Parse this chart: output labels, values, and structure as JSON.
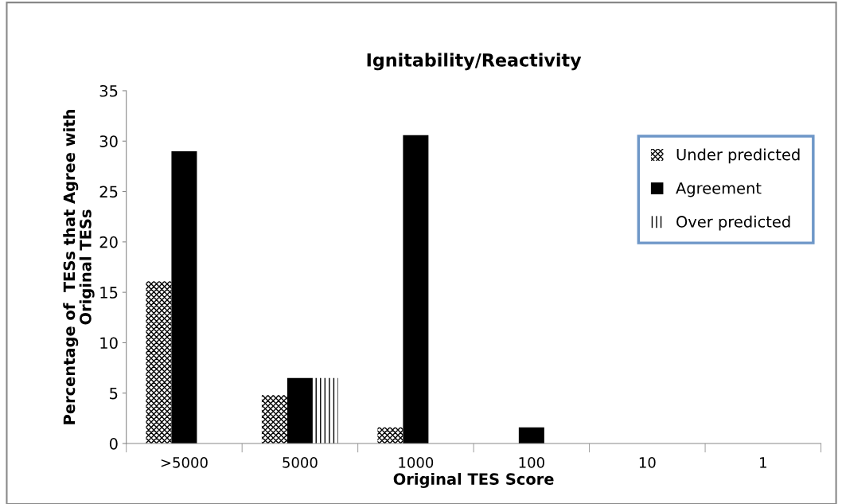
{
  "chart_data": {
    "type": "bar",
    "title": "Ignitability/Reactivity",
    "xlabel": "Original TES Score",
    "ylabel": "Percentage of  TESs that Agree with\nOriginal TESs",
    "categories": [
      ">5000",
      "5000",
      "1000",
      "100",
      "10",
      "1"
    ],
    "series": [
      {
        "name": "Under predicted",
        "color": "#000000",
        "values": [
          16.1,
          4.8,
          1.6,
          0,
          0,
          0
        ]
      },
      {
        "name": "Agreement",
        "color": "#000000",
        "values": [
          29.0,
          6.5,
          30.6,
          1.6,
          0,
          0
        ]
      },
      {
        "name": "Over predicted",
        "color": "#000000",
        "values": [
          0,
          6.5,
          0,
          0,
          0,
          0
        ]
      }
    ],
    "ylim": [
      0,
      35
    ],
    "yticks": [
      0,
      5,
      10,
      15,
      20,
      25,
      30,
      35
    ],
    "grid": false,
    "legend": "right"
  }
}
